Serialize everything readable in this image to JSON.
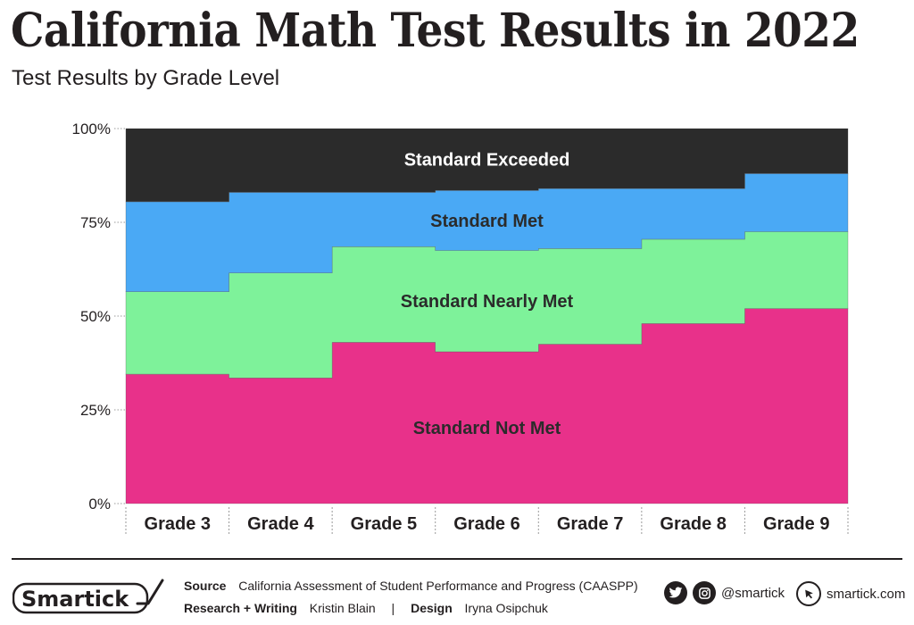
{
  "header": {
    "title": "California Math Test Results in 2022",
    "subtitle": "Test Results by Grade Level"
  },
  "chart_data": {
    "type": "area",
    "stacked": true,
    "step": true,
    "categories": [
      "Grade 3",
      "Grade 4",
      "Grade 5",
      "Grade 6",
      "Grade 7",
      "Grade 8",
      "Grade 9"
    ],
    "ylim": [
      0,
      100
    ],
    "yticks": [
      "0%",
      "25%",
      "50%",
      "75%",
      "100%"
    ],
    "series": [
      {
        "name": "Standard Not Met",
        "values": [
          34.5,
          33.5,
          43.0,
          40.5,
          42.5,
          48.0,
          52.0
        ],
        "color": "#e8318a"
      },
      {
        "name": "Standard Nearly Met",
        "values": [
          22.0,
          28.0,
          25.5,
          27.0,
          25.5,
          22.5,
          20.5
        ],
        "color": "#7ef29a"
      },
      {
        "name": "Standard Met",
        "values": [
          24.0,
          21.5,
          14.5,
          16.0,
          16.0,
          13.5,
          15.5
        ],
        "color": "#4aa9f5"
      },
      {
        "name": "Standard Exceeded",
        "values": [
          19.5,
          17.0,
          17.0,
          16.5,
          16.0,
          16.0,
          12.0
        ],
        "color": "#2b2b2b"
      }
    ],
    "series_label_colors": [
      "#2b2b2b",
      "#2b2b2b",
      "#2b2b2b",
      "#ffffff"
    ]
  },
  "footer": {
    "logo_text": "Smartick",
    "source_label": "Source",
    "source_text": "California Assessment of Student Performance and Progress (CAASPP)",
    "research_label": "Research + Writing",
    "research_name": "Kristin Blain",
    "divider": "|",
    "design_label": "Design",
    "design_name": "Iryna Osipchuk",
    "social_handle": "@smartick",
    "website": "smartick.com"
  }
}
